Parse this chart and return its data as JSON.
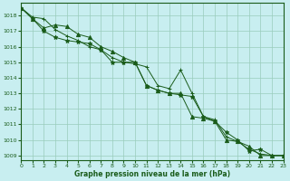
{
  "title": "Graphe pression niveau de la mer (hPa)",
  "background_color": "#c8eef0",
  "grid_color": "#99ccbb",
  "line_color": "#1a5c1a",
  "x_min": 0,
  "x_max": 23,
  "y_min": 1008.7,
  "y_max": 1018.8,
  "yticks": [
    1009,
    1010,
    1011,
    1012,
    1013,
    1014,
    1015,
    1016,
    1017,
    1018
  ],
  "xticks": [
    0,
    1,
    2,
    3,
    4,
    5,
    6,
    7,
    8,
    9,
    10,
    11,
    12,
    13,
    14,
    15,
    16,
    17,
    18,
    19,
    20,
    21,
    22,
    23
  ],
  "series": [
    {
      "y": [
        1018.5,
        1017.9,
        1017.8,
        1017.1,
        1016.7,
        1016.4,
        1016.0,
        1015.8,
        1015.3,
        1015.0,
        1014.9,
        1014.7,
        1013.5,
        1013.3,
        1014.5,
        1013.0,
        1011.5,
        1011.3,
        1010.2,
        1009.9,
        1009.4,
        1009.1,
        1009.0,
        1009.0
      ],
      "marker": "+"
    },
    {
      "y": [
        1018.5,
        1017.8,
        1017.0,
        1016.6,
        1016.4,
        1016.3,
        1016.2,
        1015.8,
        1015.0,
        1015.0,
        1015.0,
        1013.5,
        1013.2,
        1013.0,
        1012.9,
        1012.8,
        1011.5,
        1011.2,
        1010.5,
        1010.0,
        1009.3,
        1009.4,
        1009.0,
        1009.0
      ],
      "marker": "*"
    },
    {
      "y": [
        1018.5,
        1017.8,
        1017.2,
        1017.4,
        1017.3,
        1016.8,
        1016.6,
        1016.0,
        1015.7,
        1015.3,
        1015.0,
        1013.5,
        1013.2,
        1013.0,
        1013.0,
        1011.5,
        1011.4,
        1011.2,
        1010.0,
        1009.9,
        1009.6,
        1009.0,
        1009.0,
        1009.0
      ],
      "marker": "^"
    }
  ]
}
